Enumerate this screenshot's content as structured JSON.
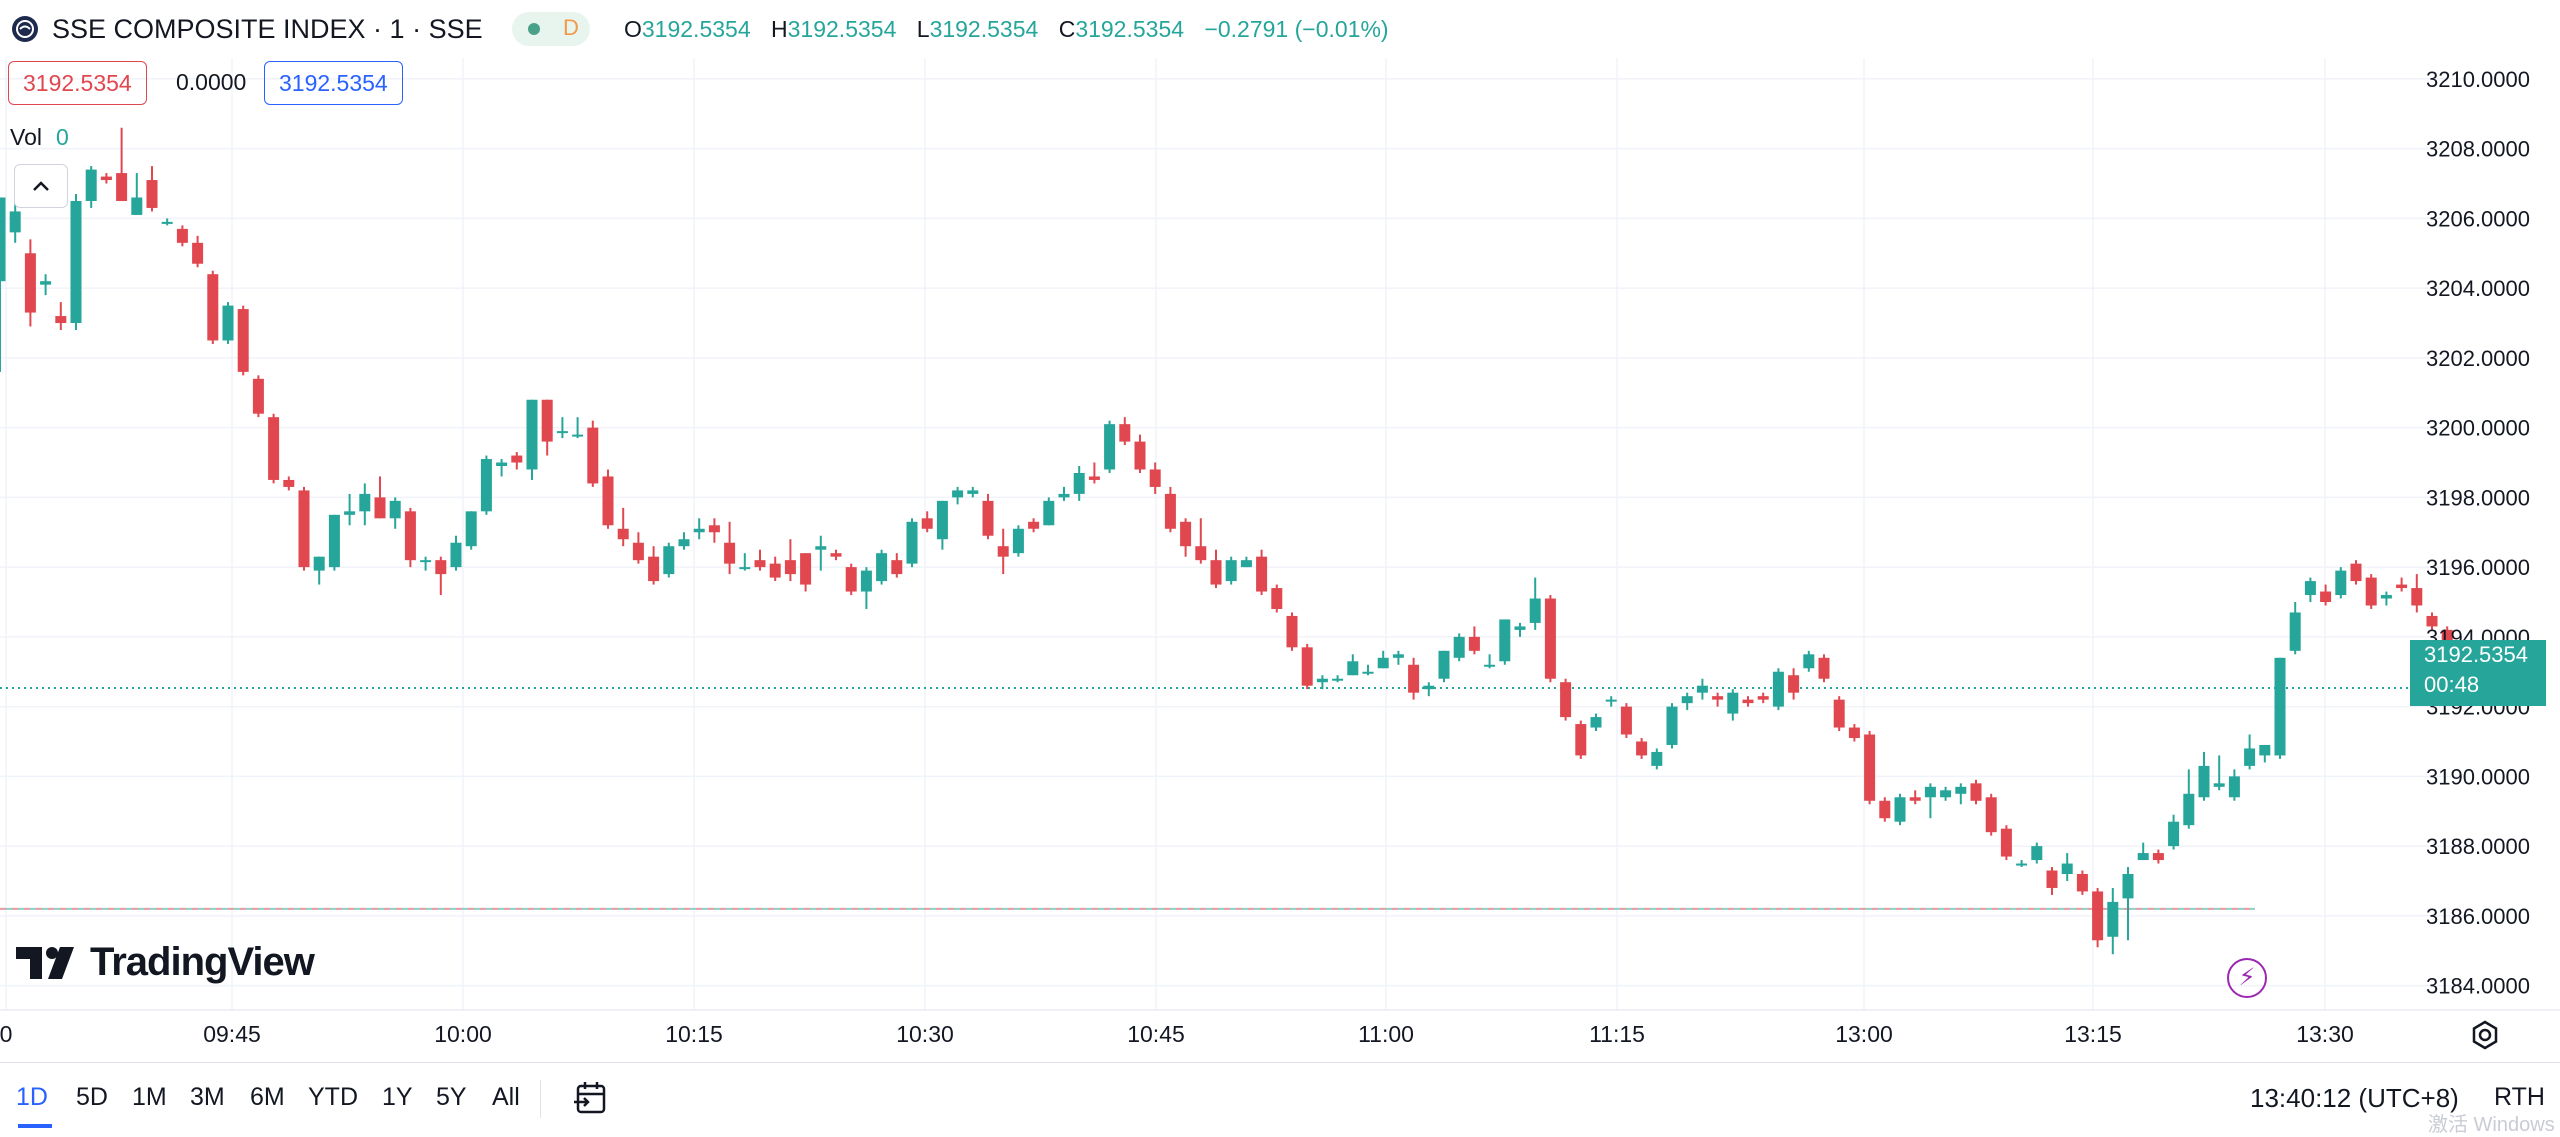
{
  "header": {
    "symbol": "SSE COMPOSITE INDEX · 1 · SSE",
    "status_badge": "D",
    "ohlc": {
      "o_label": "O",
      "o": "3192.5354",
      "h_label": "H",
      "h": "3192.5354",
      "l_label": "L",
      "l": "3192.5354",
      "c_label": "C",
      "c": "3192.5354",
      "change": "−0.2791 (−0.01%)"
    }
  },
  "price_boxes": {
    "bid": "3192.5354",
    "spread": "0.0000",
    "ask": "3192.5354"
  },
  "volume": {
    "label": "Vol",
    "value": "0"
  },
  "last_price": {
    "value": "3192.5354",
    "countdown": "00:48"
  },
  "logo": {
    "text": "TradingView"
  },
  "bottom_bar": {
    "ranges": [
      "1D",
      "5D",
      "1M",
      "3M",
      "6M",
      "YTD",
      "1Y",
      "5Y",
      "All"
    ],
    "active_range": "1D",
    "clock": "13:40:12 (UTC+8)",
    "session": "RTH",
    "watermark": "激活 Windows"
  },
  "colors": {
    "up": "#26a69a",
    "down": "#e0474f",
    "accent": "#2962ff"
  },
  "chart_data": {
    "type": "candlestick",
    "ylim": [
      3183.3,
      3210.6
    ],
    "y_ticks": [
      3184,
      3186,
      3188,
      3190,
      3192,
      3194,
      3196,
      3198,
      3200,
      3202,
      3204,
      3206,
      3208,
      3210
    ],
    "y_tick_labels": [
      "3184.0000",
      "3186.0000",
      "3188.0000",
      "3190.0000",
      "3192.0000",
      "3194.0000",
      "3196.0000",
      "3198.0000",
      "3200.0000",
      "3202.0000",
      "3204.0000",
      "3206.0000",
      "3208.0000",
      "3210.0000"
    ],
    "x_ticks": [
      "0",
      "09:45",
      "10:00",
      "10:15",
      "10:30",
      "10:45",
      "11:00",
      "11:15",
      "13:00",
      "13:15",
      "13:30"
    ],
    "reference_line": 3186.2,
    "last_price_line": 3192.5354,
    "candles": [
      [
        3204.2,
        3206.6,
        3201.6,
        3206.6
      ],
      [
        3205.6,
        3206.6,
        3205.3,
        3206.2
      ],
      [
        3205.0,
        3205.4,
        3202.9,
        3203.3
      ],
      [
        3204.1,
        3204.4,
        3203.8,
        3204.2
      ],
      [
        3203.2,
        3203.6,
        3202.8,
        3203.0
      ],
      [
        3203.0,
        3206.7,
        3202.8,
        3206.5
      ],
      [
        3206.5,
        3207.5,
        3206.3,
        3207.4
      ],
      [
        3207.2,
        3207.3,
        3207.0,
        3207.1
      ],
      [
        3207.3,
        3208.6,
        3206.5,
        3206.5
      ],
      [
        3206.1,
        3207.3,
        3206.1,
        3206.6
      ],
      [
        3207.1,
        3207.5,
        3206.2,
        3206.3
      ],
      [
        3205.9,
        3206.0,
        3205.8,
        3205.9
      ],
      [
        3205.7,
        3205.8,
        3205.2,
        3205.3
      ],
      [
        3205.3,
        3205.5,
        3204.6,
        3204.7
      ],
      [
        3204.4,
        3204.5,
        3202.4,
        3202.5
      ],
      [
        3202.5,
        3203.6,
        3202.4,
        3203.5
      ],
      [
        3203.4,
        3203.5,
        3201.5,
        3201.6
      ],
      [
        3201.4,
        3201.5,
        3200.3,
        3200.4
      ],
      [
        3200.3,
        3200.4,
        3198.4,
        3198.5
      ],
      [
        3198.5,
        3198.6,
        3198.2,
        3198.3
      ],
      [
        3198.2,
        3198.3,
        3195.9,
        3196.0
      ],
      [
        3195.9,
        3196.3,
        3195.5,
        3196.3
      ],
      [
        3196.0,
        3197.5,
        3195.9,
        3197.5
      ],
      [
        3197.5,
        3198.1,
        3197.2,
        3197.6
      ],
      [
        3197.6,
        3198.4,
        3197.2,
        3198.1
      ],
      [
        3198.0,
        3198.6,
        3197.4,
        3197.4
      ],
      [
        3197.4,
        3198.0,
        3197.1,
        3197.9
      ],
      [
        3197.6,
        3197.7,
        3196.0,
        3196.2
      ],
      [
        3196.2,
        3196.3,
        3195.9,
        3196.2
      ],
      [
        3196.2,
        3196.3,
        3195.2,
        3195.8
      ],
      [
        3196.0,
        3196.9,
        3195.9,
        3196.7
      ],
      [
        3196.6,
        3197.6,
        3196.5,
        3197.6
      ],
      [
        3197.6,
        3199.2,
        3197.5,
        3199.1
      ],
      [
        3198.9,
        3199.1,
        3198.6,
        3199.0
      ],
      [
        3199.2,
        3199.3,
        3198.8,
        3199.0
      ],
      [
        3198.8,
        3200.8,
        3198.5,
        3200.8
      ],
      [
        3200.8,
        3200.8,
        3199.2,
        3199.6
      ],
      [
        3199.9,
        3200.3,
        3199.7,
        3199.9
      ],
      [
        3199.8,
        3200.3,
        3199.7,
        3199.8
      ],
      [
        3200.0,
        3200.2,
        3198.3,
        3198.4
      ],
      [
        3198.6,
        3198.8,
        3197.1,
        3197.2
      ],
      [
        3197.1,
        3197.7,
        3196.6,
        3196.8
      ],
      [
        3196.7,
        3197.0,
        3196.1,
        3196.2
      ],
      [
        3196.3,
        3196.6,
        3195.5,
        3195.6
      ],
      [
        3195.8,
        3196.7,
        3195.7,
        3196.6
      ],
      [
        3196.6,
        3197.0,
        3196.5,
        3196.8
      ],
      [
        3197.0,
        3197.4,
        3196.8,
        3197.1
      ],
      [
        3197.2,
        3197.4,
        3196.7,
        3197.0
      ],
      [
        3196.7,
        3197.3,
        3195.8,
        3196.1
      ],
      [
        3196.0,
        3196.4,
        3195.9,
        3196.0
      ],
      [
        3196.2,
        3196.5,
        3195.9,
        3196.0
      ],
      [
        3196.1,
        3196.3,
        3195.6,
        3195.7
      ],
      [
        3196.2,
        3196.8,
        3195.6,
        3195.8
      ],
      [
        3196.4,
        3196.4,
        3195.3,
        3195.5
      ],
      [
        3196.5,
        3196.9,
        3195.9,
        3196.6
      ],
      [
        3196.4,
        3196.5,
        3196.2,
        3196.3
      ],
      [
        3196.0,
        3196.1,
        3195.2,
        3195.3
      ],
      [
        3195.3,
        3196.0,
        3194.8,
        3195.9
      ],
      [
        3195.6,
        3196.5,
        3195.5,
        3196.4
      ],
      [
        3196.2,
        3196.4,
        3195.7,
        3195.8
      ],
      [
        3196.1,
        3197.4,
        3196.0,
        3197.3
      ],
      [
        3197.4,
        3197.6,
        3197.0,
        3197.1
      ],
      [
        3196.8,
        3197.9,
        3196.5,
        3197.9
      ],
      [
        3198.0,
        3198.3,
        3197.8,
        3198.2
      ],
      [
        3198.1,
        3198.3,
        3198.0,
        3198.2
      ],
      [
        3197.9,
        3198.1,
        3196.8,
        3196.9
      ],
      [
        3196.6,
        3197.1,
        3195.8,
        3196.3
      ],
      [
        3196.4,
        3197.2,
        3196.3,
        3197.1
      ],
      [
        3197.3,
        3197.4,
        3197.0,
        3197.1
      ],
      [
        3197.2,
        3198.0,
        3197.2,
        3197.9
      ],
      [
        3198.0,
        3198.3,
        3197.9,
        3198.1
      ],
      [
        3198.1,
        3198.9,
        3197.9,
        3198.7
      ],
      [
        3198.6,
        3199.0,
        3198.4,
        3198.5
      ],
      [
        3198.8,
        3200.2,
        3198.7,
        3200.1
      ],
      [
        3200.1,
        3200.3,
        3199.5,
        3199.6
      ],
      [
        3199.6,
        3199.8,
        3198.7,
        3198.8
      ],
      [
        3198.8,
        3199.0,
        3198.1,
        3198.3
      ],
      [
        3198.1,
        3198.3,
        3197.0,
        3197.1
      ],
      [
        3197.3,
        3197.4,
        3196.3,
        3196.6
      ],
      [
        3196.6,
        3197.4,
        3196.1,
        3196.2
      ],
      [
        3196.2,
        3196.5,
        3195.4,
        3195.5
      ],
      [
        3195.6,
        3196.3,
        3195.5,
        3196.2
      ],
      [
        3196.0,
        3196.3,
        3196.0,
        3196.2
      ],
      [
        3196.3,
        3196.5,
        3195.2,
        3195.3
      ],
      [
        3195.4,
        3195.5,
        3194.7,
        3194.8
      ],
      [
        3194.6,
        3194.7,
        3193.6,
        3193.7
      ],
      [
        3193.7,
        3193.8,
        3192.5,
        3192.6
      ],
      [
        3192.7,
        3192.9,
        3192.5,
        3192.8
      ],
      [
        3192.8,
        3192.9,
        3192.7,
        3192.8
      ],
      [
        3192.9,
        3193.5,
        3192.9,
        3193.3
      ],
      [
        3193.0,
        3193.2,
        3192.9,
        3193.0
      ],
      [
        3193.1,
        3193.6,
        3193.1,
        3193.4
      ],
      [
        3193.4,
        3193.6,
        3193.2,
        3193.5
      ],
      [
        3193.2,
        3193.4,
        3192.2,
        3192.4
      ],
      [
        3192.5,
        3192.7,
        3192.3,
        3192.6
      ],
      [
        3192.8,
        3193.6,
        3192.7,
        3193.6
      ],
      [
        3193.4,
        3194.1,
        3193.3,
        3194.0
      ],
      [
        3194.0,
        3194.3,
        3193.5,
        3193.6
      ],
      [
        3193.2,
        3193.5,
        3193.1,
        3193.2
      ],
      [
        3193.3,
        3194.5,
        3193.2,
        3194.5
      ],
      [
        3194.2,
        3194.4,
        3194.0,
        3194.3
      ],
      [
        3194.4,
        3195.7,
        3194.2,
        3195.1
      ],
      [
        3195.1,
        3195.2,
        3192.7,
        3192.8
      ],
      [
        3192.7,
        3192.8,
        3191.6,
        3191.7
      ],
      [
        3191.5,
        3191.6,
        3190.5,
        3190.6
      ],
      [
        3191.4,
        3191.8,
        3191.3,
        3191.7
      ],
      [
        3192.2,
        3192.3,
        3192.0,
        3192.2
      ],
      [
        3192.0,
        3192.1,
        3191.1,
        3191.2
      ],
      [
        3191.0,
        3191.1,
        3190.5,
        3190.6
      ],
      [
        3190.3,
        3190.8,
        3190.2,
        3190.7
      ],
      [
        3190.9,
        3192.1,
        3190.8,
        3192.0
      ],
      [
        3192.1,
        3192.4,
        3191.9,
        3192.3
      ],
      [
        3192.4,
        3192.8,
        3192.2,
        3192.6
      ],
      [
        3192.3,
        3192.4,
        3192.0,
        3192.2
      ],
      [
        3191.8,
        3192.5,
        3191.6,
        3192.4
      ],
      [
        3192.2,
        3192.3,
        3192.0,
        3192.1
      ],
      [
        3192.3,
        3192.4,
        3192.1,
        3192.2
      ],
      [
        3192.0,
        3193.1,
        3191.9,
        3193.0
      ],
      [
        3192.9,
        3193.1,
        3192.2,
        3192.4
      ],
      [
        3193.1,
        3193.6,
        3193.0,
        3193.5
      ],
      [
        3193.4,
        3193.5,
        3192.7,
        3192.8
      ],
      [
        3192.2,
        3192.3,
        3191.3,
        3191.4
      ],
      [
        3191.4,
        3191.5,
        3191.0,
        3191.1
      ],
      [
        3191.2,
        3191.3,
        3189.2,
        3189.3
      ],
      [
        3189.3,
        3189.4,
        3188.7,
        3188.8
      ],
      [
        3188.7,
        3189.5,
        3188.6,
        3189.4
      ],
      [
        3189.4,
        3189.6,
        3189.2,
        3189.3
      ],
      [
        3189.4,
        3189.8,
        3188.8,
        3189.7
      ],
      [
        3189.4,
        3189.7,
        3189.3,
        3189.6
      ],
      [
        3189.5,
        3189.8,
        3189.2,
        3189.7
      ],
      [
        3189.8,
        3189.9,
        3189.2,
        3189.3
      ],
      [
        3189.4,
        3189.5,
        3188.3,
        3188.4
      ],
      [
        3188.5,
        3188.6,
        3187.6,
        3187.7
      ],
      [
        3187.5,
        3187.6,
        3187.4,
        3187.5
      ],
      [
        3187.6,
        3188.1,
        3187.5,
        3188.0
      ],
      [
        3187.3,
        3187.4,
        3186.6,
        3186.8
      ],
      [
        3187.2,
        3187.8,
        3187.0,
        3187.5
      ],
      [
        3187.2,
        3187.3,
        3186.6,
        3186.7
      ],
      [
        3186.7,
        3186.8,
        3185.1,
        3185.3
      ],
      [
        3185.4,
        3186.8,
        3184.9,
        3186.4
      ],
      [
        3186.5,
        3187.4,
        3185.3,
        3187.2
      ],
      [
        3187.6,
        3188.1,
        3187.6,
        3187.8
      ],
      [
        3187.8,
        3187.9,
        3187.5,
        3187.6
      ],
      [
        3188.0,
        3188.9,
        3187.9,
        3188.7
      ],
      [
        3188.6,
        3190.2,
        3188.5,
        3189.5
      ],
      [
        3189.4,
        3190.7,
        3189.3,
        3190.3
      ],
      [
        3189.7,
        3190.6,
        3189.6,
        3189.8
      ],
      [
        3189.4,
        3190.2,
        3189.3,
        3190.0
      ],
      [
        3190.3,
        3191.2,
        3190.2,
        3190.8
      ],
      [
        3190.6,
        3190.9,
        3190.4,
        3190.9
      ],
      [
        3190.6,
        3193.4,
        3190.5,
        3193.4
      ],
      [
        3193.6,
        3195.0,
        3193.5,
        3194.7
      ],
      [
        3195.2,
        3195.7,
        3195.0,
        3195.6
      ],
      [
        3195.3,
        3195.5,
        3194.9,
        3195.0
      ],
      [
        3195.2,
        3196.0,
        3195.1,
        3195.9
      ],
      [
        3196.1,
        3196.2,
        3195.5,
        3195.6
      ],
      [
        3195.7,
        3195.8,
        3194.8,
        3194.9
      ],
      [
        3195.1,
        3195.3,
        3194.9,
        3195.2
      ],
      [
        3195.5,
        3195.7,
        3195.3,
        3195.4
      ],
      [
        3195.4,
        3195.8,
        3194.7,
        3194.9
      ],
      [
        3194.6,
        3194.7,
        3194.2,
        3194.3
      ],
      [
        3194.2,
        3194.3,
        3192.6,
        3192.7
      ],
      [
        3192.55,
        3192.55,
        3192.5,
        3192.5354
      ]
    ]
  }
}
